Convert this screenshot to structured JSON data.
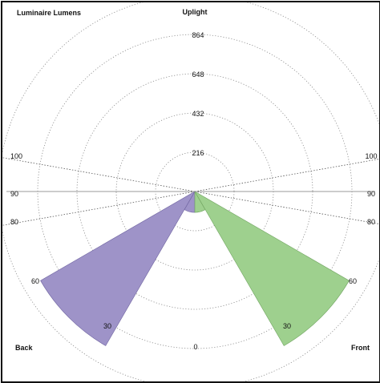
{
  "chart_data": {
    "type": "polar",
    "title": "Luminaire Lumens",
    "labels": {
      "top": "Uplight",
      "bottom_left": "Back",
      "bottom_right": "Front",
      "bottom_center": "0"
    },
    "radial_ticks": [
      "216",
      "432",
      "648",
      "864"
    ],
    "radial_max": 1080,
    "angle_labels": {
      "left": [
        "100",
        "90",
        "80",
        "60",
        "30"
      ],
      "right": [
        "100",
        "90",
        "80",
        "60",
        "30"
      ]
    },
    "series": [
      {
        "name": "Back",
        "color": "#9e93c8",
        "sectors": [
          {
            "from_deg": 0,
            "to_deg": 30,
            "value": 115
          },
          {
            "from_deg": 30,
            "to_deg": 60,
            "value": 980
          }
        ]
      },
      {
        "name": "Front",
        "color": "#9ed08e",
        "sectors": [
          {
            "from_deg": 0,
            "to_deg": 30,
            "value": 115
          },
          {
            "from_deg": 30,
            "to_deg": 60,
            "value": 980
          }
        ]
      }
    ]
  }
}
